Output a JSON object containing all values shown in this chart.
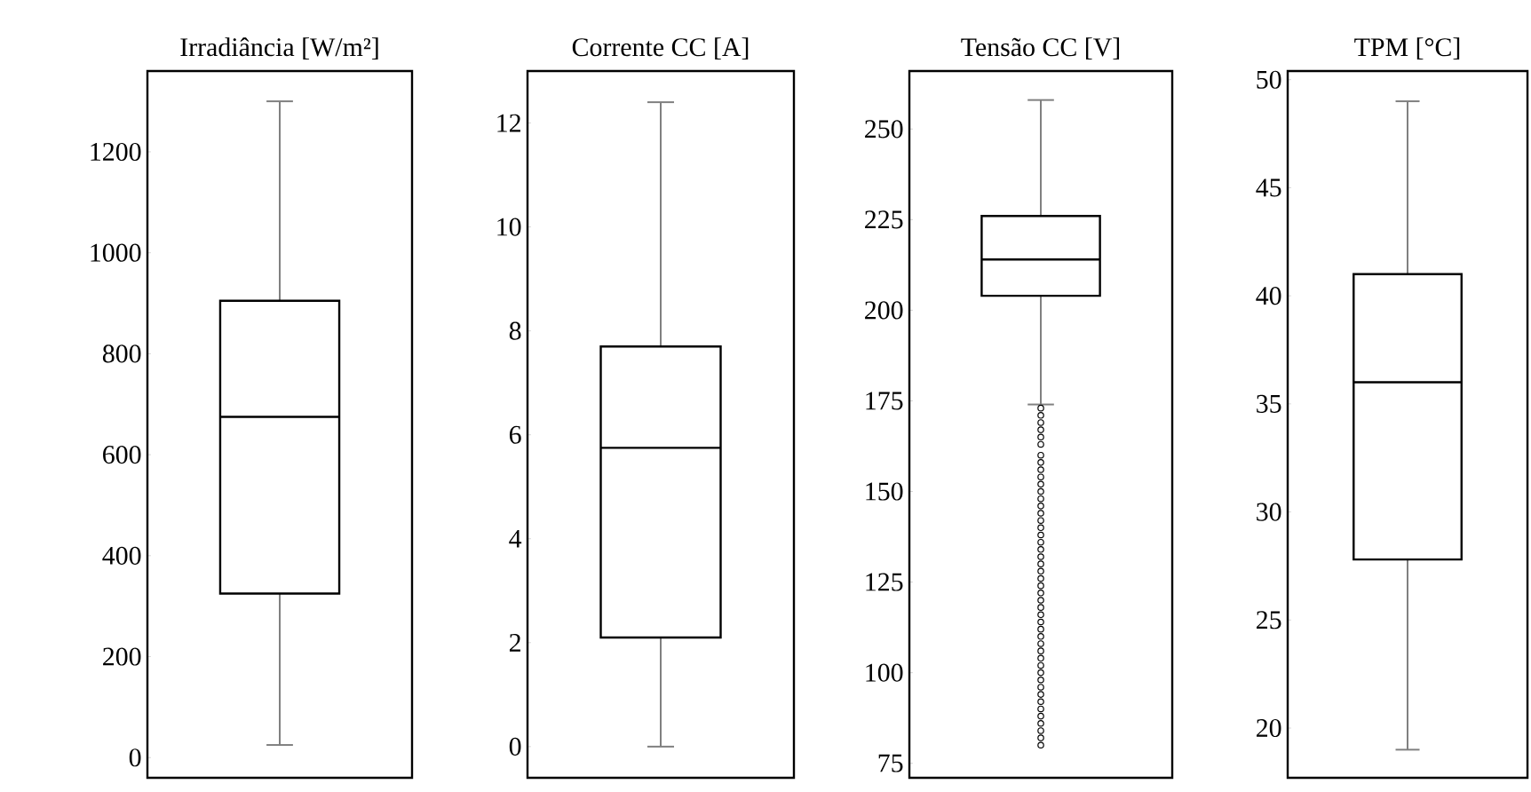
{
  "chart_data": [
    {
      "type": "box",
      "categories": [
        "Irradiância [W/m²]"
      ],
      "boxes": [
        {
          "low": 25,
          "q1": 325,
          "median": 675,
          "q3": 905,
          "high": 1300
        }
      ],
      "color": "#000000",
      "ylim": [
        -40,
        1360
      ],
      "yticks": [
        0,
        200,
        400,
        600,
        800,
        1000,
        1200
      ]
    },
    {
      "type": "box",
      "categories": [
        "Corrente CC [A]"
      ],
      "boxes": [
        {
          "low": 0.0,
          "q1": 2.1,
          "median": 5.75,
          "q3": 7.7,
          "high": 12.4
        }
      ],
      "color": "#000000",
      "ylim": [
        -0.6,
        13.0
      ],
      "yticks": [
        0,
        2,
        4,
        6,
        8,
        10,
        12
      ]
    },
    {
      "type": "box",
      "categories": [
        "Tensão CC [V]"
      ],
      "boxes": [
        {
          "low": 174,
          "q1": 204,
          "median": 214,
          "q3": 226,
          "high": 258,
          "outliers": [
            80,
            82,
            84,
            86,
            88,
            90,
            92,
            94,
            96,
            98,
            100,
            102,
            104,
            106,
            108,
            110,
            112,
            114,
            116,
            118,
            120,
            122,
            124,
            126,
            128,
            130,
            132,
            134,
            136,
            138,
            140,
            142,
            144,
            146,
            148,
            150,
            152,
            154,
            156,
            158,
            160,
            163,
            165,
            167,
            169,
            171,
            173
          ]
        }
      ],
      "color": "#000000",
      "ylim": [
        71,
        266
      ],
      "yticks": [
        75,
        100,
        125,
        150,
        175,
        200,
        225,
        250
      ]
    },
    {
      "type": "box",
      "categories": [
        "TPM [°C]"
      ],
      "boxes": [
        {
          "low": 19,
          "q1": 27.8,
          "median": 36,
          "q3": 41,
          "high": 49
        }
      ],
      "color": "#000000",
      "ylim": [
        17.7,
        50.4
      ],
      "yticks": [
        20,
        25,
        30,
        35,
        40,
        45,
        50
      ]
    }
  ]
}
